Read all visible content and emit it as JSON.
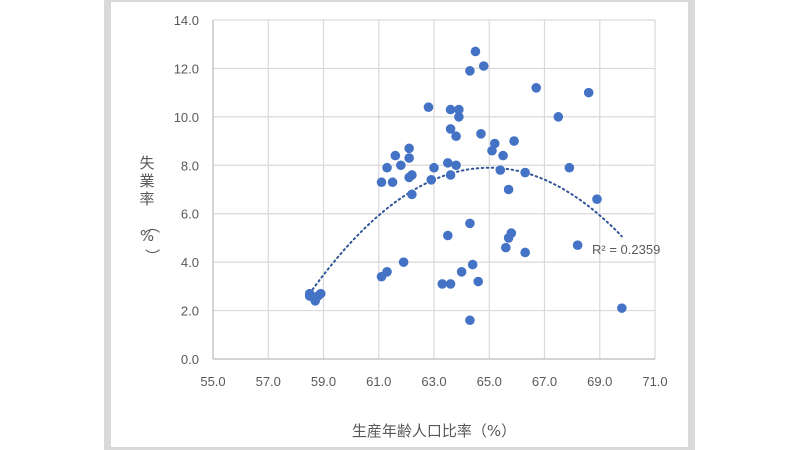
{
  "chart_data": {
    "type": "scatter",
    "title": "",
    "xlabel": "生産年齢人口比率（%）",
    "ylabel": "失業率（%）",
    "xlim": [
      55.0,
      71.0
    ],
    "ylim": [
      0.0,
      14.0
    ],
    "x_ticks": [
      "55.0",
      "57.0",
      "59.0",
      "61.0",
      "63.0",
      "65.0",
      "67.0",
      "69.0",
      "71.0"
    ],
    "y_ticks": [
      "0.0",
      "2.0",
      "4.0",
      "6.0",
      "8.0",
      "10.0",
      "12.0",
      "14.0"
    ],
    "grid": true,
    "legend": null,
    "marker_color": "#4472c4",
    "trendline": {
      "type": "polynomial",
      "order": 2,
      "style": "dotted",
      "color": "#2f5597",
      "x_range": [
        58.5,
        69.8
      ],
      "approx_vertex": [
        65.0,
        7.9
      ],
      "approx_coef_a": -0.123,
      "r_squared_label": "R² = 0.2359"
    },
    "points": [
      {
        "x": 58.5,
        "y": 2.7
      },
      {
        "x": 58.5,
        "y": 2.6
      },
      {
        "x": 58.7,
        "y": 2.4
      },
      {
        "x": 58.8,
        "y": 2.6
      },
      {
        "x": 58.9,
        "y": 2.7
      },
      {
        "x": 61.1,
        "y": 3.4
      },
      {
        "x": 61.3,
        "y": 3.6
      },
      {
        "x": 61.9,
        "y": 4.0
      },
      {
        "x": 61.1,
        "y": 7.3
      },
      {
        "x": 61.5,
        "y": 7.3
      },
      {
        "x": 61.3,
        "y": 7.9
      },
      {
        "x": 61.8,
        "y": 8.0
      },
      {
        "x": 61.6,
        "y": 8.4
      },
      {
        "x": 62.1,
        "y": 8.3
      },
      {
        "x": 62.1,
        "y": 8.7
      },
      {
        "x": 62.2,
        "y": 7.6
      },
      {
        "x": 62.1,
        "y": 7.5
      },
      {
        "x": 62.2,
        "y": 6.8
      },
      {
        "x": 62.8,
        "y": 10.4
      },
      {
        "x": 62.9,
        "y": 7.4
      },
      {
        "x": 63.0,
        "y": 7.9
      },
      {
        "x": 63.5,
        "y": 8.1
      },
      {
        "x": 63.8,
        "y": 8.0
      },
      {
        "x": 63.6,
        "y": 7.6
      },
      {
        "x": 63.6,
        "y": 10.3
      },
      {
        "x": 63.9,
        "y": 10.3
      },
      {
        "x": 63.9,
        "y": 10.0
      },
      {
        "x": 63.6,
        "y": 9.5
      },
      {
        "x": 63.8,
        "y": 9.2
      },
      {
        "x": 63.3,
        "y": 3.1
      },
      {
        "x": 63.6,
        "y": 3.1
      },
      {
        "x": 63.5,
        "y": 5.1
      },
      {
        "x": 64.0,
        "y": 3.6
      },
      {
        "x": 64.4,
        "y": 3.9
      },
      {
        "x": 64.6,
        "y": 3.2
      },
      {
        "x": 64.3,
        "y": 5.6
      },
      {
        "x": 64.3,
        "y": 1.6
      },
      {
        "x": 64.5,
        "y": 12.7
      },
      {
        "x": 64.3,
        "y": 11.9
      },
      {
        "x": 64.8,
        "y": 12.1
      },
      {
        "x": 64.7,
        "y": 9.3
      },
      {
        "x": 65.2,
        "y": 8.9
      },
      {
        "x": 65.1,
        "y": 8.6
      },
      {
        "x": 65.5,
        "y": 8.4
      },
      {
        "x": 65.9,
        "y": 9.0
      },
      {
        "x": 65.4,
        "y": 7.8
      },
      {
        "x": 65.7,
        "y": 7.0
      },
      {
        "x": 66.3,
        "y": 7.7
      },
      {
        "x": 65.8,
        "y": 5.2
      },
      {
        "x": 65.7,
        "y": 5.0
      },
      {
        "x": 65.6,
        "y": 4.6
      },
      {
        "x": 66.3,
        "y": 4.4
      },
      {
        "x": 66.7,
        "y": 11.2
      },
      {
        "x": 67.5,
        "y": 10.0
      },
      {
        "x": 67.9,
        "y": 7.9
      },
      {
        "x": 68.6,
        "y": 11.0
      },
      {
        "x": 68.9,
        "y": 6.6
      },
      {
        "x": 68.2,
        "y": 4.7
      },
      {
        "x": 69.8,
        "y": 2.1
      }
    ]
  }
}
